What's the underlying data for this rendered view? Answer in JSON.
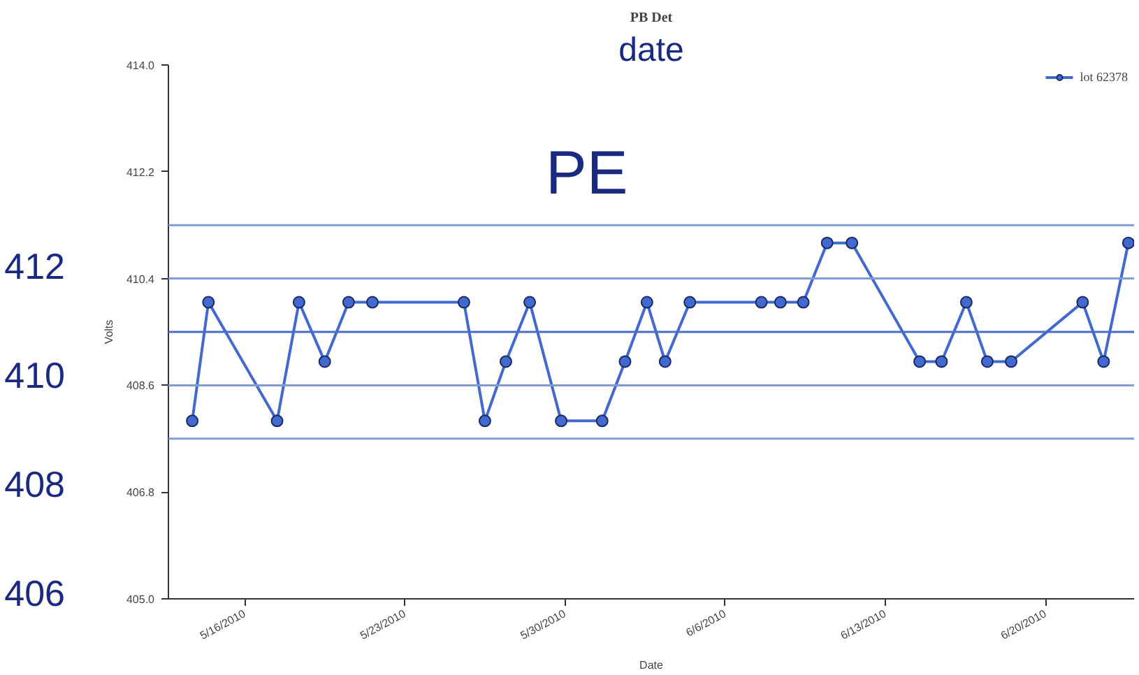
{
  "chart_data": {
    "type": "line",
    "title": "PB Det",
    "xlabel": "Date",
    "ylabel": "Volts",
    "annotations": [
      "date",
      "PE"
    ],
    "series": [
      {
        "name": "lot 62378",
        "color": "#4169d0",
        "x": [
          "2010-05-13T17:00",
          "2010-05-14T10:00",
          "2010-05-17T10:00",
          "2010-05-18T09:00",
          "2010-05-19T12:00",
          "2010-05-20T13:00",
          "2010-05-21T14:00",
          "2010-05-25T14:00",
          "2010-05-26T12:00",
          "2010-05-27T10:00",
          "2010-05-28T11:00",
          "2010-05-29T20:00",
          "2010-05-31T15:00",
          "2010-06-01T15:00",
          "2010-06-02T14:00",
          "2010-06-03T09:00",
          "2010-06-04T11:00",
          "2010-06-07T14:00",
          "2010-06-08T10:00",
          "2010-06-09T10:00",
          "2010-06-10T11:00",
          "2010-06-11T13:00",
          "2010-06-14T12:00",
          "2010-06-15T11:00",
          "2010-06-16T13:00",
          "2010-06-17T11:00",
          "2010-06-18T12:00",
          "2010-06-21T15:00",
          "2010-06-22T13:00",
          "2010-06-23T15:00"
        ],
        "values": [
          408,
          410,
          408,
          410,
          409,
          410,
          410,
          410,
          408,
          409,
          410,
          408,
          408,
          409,
          410,
          409,
          410,
          410,
          410,
          410,
          411,
          411,
          409,
          409,
          410,
          409,
          409,
          410,
          409,
          411
        ]
      }
    ],
    "xlim": [
      "2010-05-12T16:00",
      "2010-06-23T21:00"
    ],
    "xticks": [
      {
        "value": "2010-05-16",
        "label": "5/16/2010"
      },
      {
        "value": "2010-05-23",
        "label": "5/23/2010"
      },
      {
        "value": "2010-05-30",
        "label": "5/30/2010"
      },
      {
        "value": "2010-06-06",
        "label": "6/6/2010"
      },
      {
        "value": "2010-06-13",
        "label": "6/13/2010"
      },
      {
        "value": "2010-06-20",
        "label": "6/20/2010"
      }
    ],
    "ylim": [
      405,
      414
    ],
    "yticks": [
      {
        "value": 405,
        "label": "405.0"
      },
      406.8,
      408.6,
      410.4,
      412.2,
      {
        "value": 414,
        "label": "414.0"
      }
    ],
    "y2lim": [
      405.9,
      415.7
    ],
    "y2ticks": [
      406,
      408,
      410,
      412
    ],
    "ref_lines": [
      {
        "axis": "y",
        "value": 411.3,
        "color": "#7f9bd4"
      },
      {
        "axis": "y",
        "value": 410.4,
        "color": "#7f9bd4"
      },
      {
        "axis": "y",
        "value": 409.5,
        "color": "#4a6cc8"
      },
      {
        "axis": "y",
        "value": 408.6,
        "color": "#7f9bd4"
      },
      {
        "axis": "y",
        "value": 407.7,
        "color": "#7f9bd4"
      }
    ],
    "legend": "top right",
    "marker": "circle",
    "line_style": "solid",
    "grid": false
  }
}
